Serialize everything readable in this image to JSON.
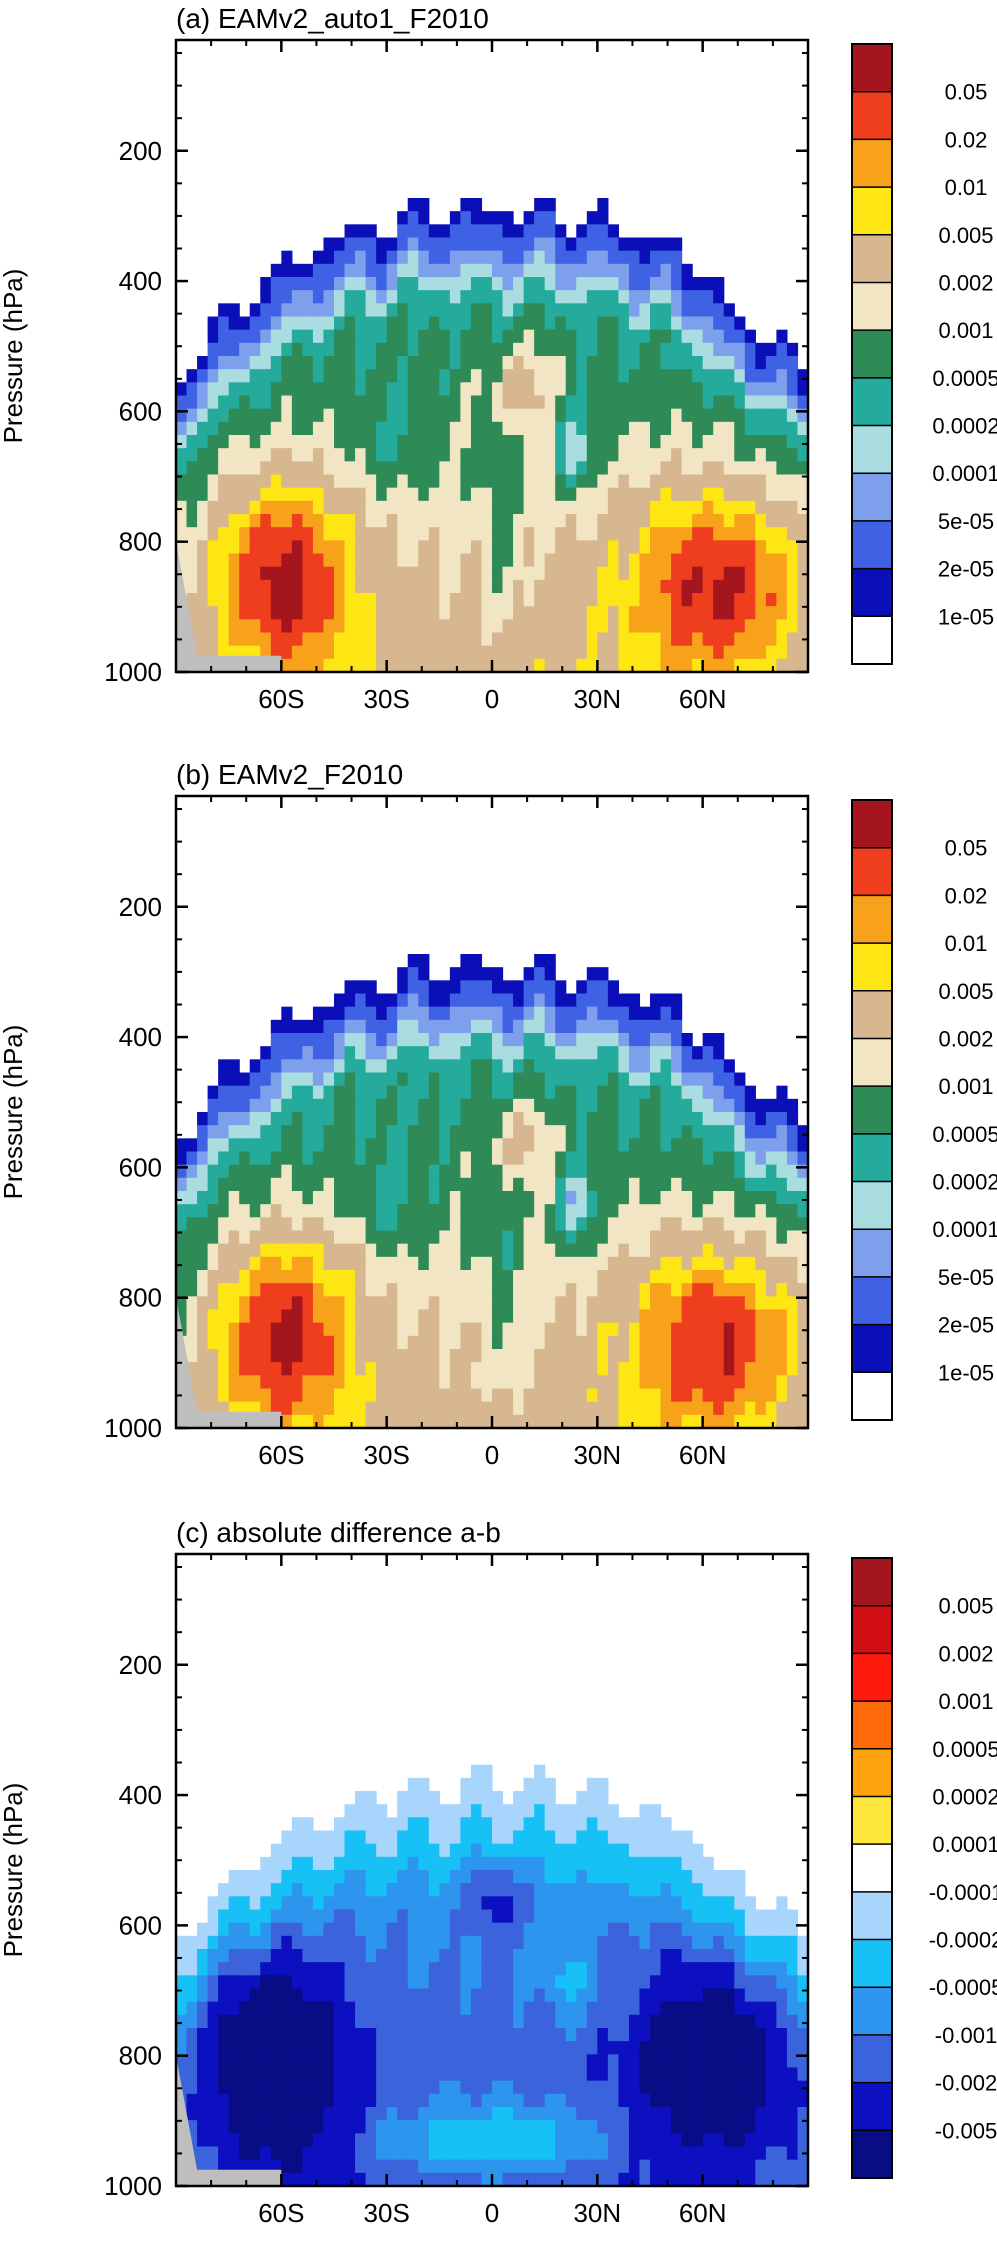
{
  "chart_data": [
    {
      "type": "heatmap",
      "title": "(a) EAMv2_auto1_F2010",
      "ylabel": "Pressure (hPa)",
      "xlabel": "",
      "xlim": [
        -90,
        90
      ],
      "ylim": [
        1000,
        30
      ],
      "x_tick_labels": [
        "60S",
        "30S",
        "0",
        "30N",
        "60N"
      ],
      "y_tick_labels": [
        "200",
        "400",
        "600",
        "800",
        "1000"
      ],
      "colorbar_labels": [
        "0.05",
        "0.02",
        "0.01",
        "0.005",
        "0.002",
        "0.001",
        "0.0005",
        "0.0002",
        "0.0001",
        "5e-05",
        "2e-05",
        "1e-05"
      ],
      "colors": [
        "#a5151d",
        "#ee3e1e",
        "#f8a21b",
        "#fde613",
        "#d7b78f",
        "#f2e5c3",
        "#2e8b57",
        "#24ab9c",
        "#a9dde0",
        "#7ea0ec",
        "#3f62e4",
        "#0a0fb8",
        "#ffffff"
      ],
      "features": [
        "max near 60S 850 hPa",
        "max near 60N 850 hPa",
        "local max near 10N 550 hPa",
        "min near 25N 650 hPa"
      ]
    },
    {
      "type": "heatmap",
      "title": "(b) EAMv2_F2010",
      "ylabel": "Pressure (hPa)",
      "xlabel": "",
      "xlim": [
        -90,
        90
      ],
      "ylim": [
        1000,
        30
      ],
      "x_tick_labels": [
        "60S",
        "30S",
        "0",
        "30N",
        "60N"
      ],
      "y_tick_labels": [
        "200",
        "400",
        "600",
        "800",
        "1000"
      ],
      "colorbar_labels": [
        "0.05",
        "0.02",
        "0.01",
        "0.005",
        "0.002",
        "0.001",
        "0.0005",
        "0.0002",
        "0.0001",
        "5e-05",
        "2e-05",
        "1e-05"
      ],
      "colors": [
        "#a5151d",
        "#ee3e1e",
        "#f8a21b",
        "#fde613",
        "#d7b78f",
        "#f2e5c3",
        "#2e8b57",
        "#24ab9c",
        "#a9dde0",
        "#7ea0ec",
        "#3f62e4",
        "#0a0fb8",
        "#ffffff"
      ]
    },
    {
      "type": "heatmap",
      "title": "(c) absolute difference a-b",
      "ylabel": "Pressure (hPa)",
      "xlabel": "",
      "xlim": [
        -90,
        90
      ],
      "ylim": [
        1000,
        30
      ],
      "x_tick_labels": [
        "60S",
        "30S",
        "0",
        "30N",
        "60N"
      ],
      "y_tick_labels": [
        "200",
        "400",
        "600",
        "800",
        "1000"
      ],
      "colorbar_labels": [
        "0.005",
        "0.002",
        "0.001",
        "0.0005",
        "0.0002",
        "0.0001",
        "-0.0001",
        "-0.0002",
        "-0.0005",
        "-0.001",
        "-0.002",
        "-0.005"
      ],
      "colors": [
        "#a5151d",
        "#d10f14",
        "#fe1a0d",
        "#ff6a0b",
        "#fea30d",
        "#fee53b",
        "#ffffff",
        "#a8d5fb",
        "#17c1f5",
        "#2d95ee",
        "#3b63dc",
        "#0c10c1",
        "#080d86"
      ]
    }
  ]
}
